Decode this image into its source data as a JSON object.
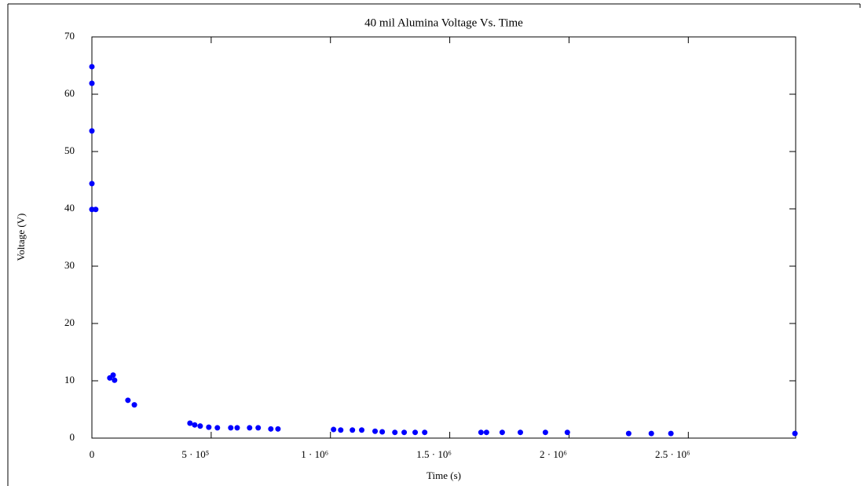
{
  "chart_data": {
    "type": "scatter",
    "title": "40 mil Alumina Voltage Vs. Time",
    "xlabel": "Time (s)",
    "ylabel": "Voltage (V)",
    "xlim": [
      0,
      2950000
    ],
    "ylim": [
      0,
      70
    ],
    "xticks": [
      0,
      {
        "value": 500000,
        "label": "5 · 10⁵"
      },
      {
        "value": 1000000,
        "label": "1 · 10⁶"
      },
      {
        "value": 1500000,
        "label": "1.5 · 10⁶"
      },
      {
        "value": 2000000,
        "label": "2 · 10⁶"
      },
      {
        "value": 2500000,
        "label": "2.5 · 10⁶"
      }
    ],
    "yticks": [
      0,
      10,
      20,
      30,
      40,
      50,
      60,
      70
    ],
    "grid": false,
    "color": "#0000ff",
    "x": [
      0,
      0,
      0,
      0,
      0,
      16000,
      75000,
      89000,
      95000,
      151000,
      178000,
      411000,
      431000,
      454000,
      490000,
      526000,
      582000,
      609000,
      661000,
      697000,
      750000,
      780000,
      1013000,
      1043000,
      1092000,
      1131000,
      1187000,
      1217000,
      1270000,
      1309000,
      1355000,
      1395000,
      1631000,
      1654000,
      1720000,
      1796000,
      1901000,
      1993000,
      2250000,
      2345000,
      2427000,
      2947000
    ],
    "values": [
      64.8,
      61.9,
      53.6,
      44.4,
      39.9,
      39.9,
      10.5,
      11,
      10.1,
      6.6,
      5.8,
      2.6,
      2.3,
      2.1,
      1.9,
      1.8,
      1.8,
      1.8,
      1.8,
      1.8,
      1.6,
      1.6,
      1.5,
      1.4,
      1.4,
      1.4,
      1.2,
      1.1,
      1,
      1,
      1,
      1,
      1,
      1,
      1,
      1,
      1,
      1,
      0.8,
      0.8,
      0.8,
      0.8
    ]
  }
}
